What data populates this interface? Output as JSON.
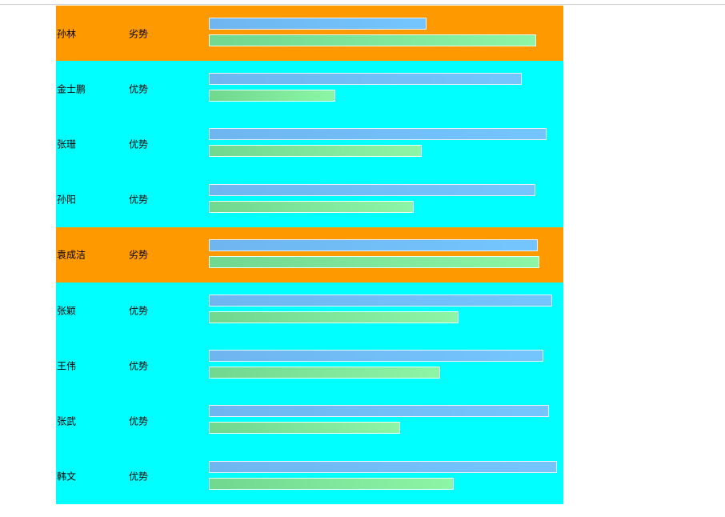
{
  "colors": {
    "advantage_row": "#00ffff",
    "disadvantage_row": "#ff9900",
    "page_background": "#ffffff"
  },
  "rows": [
    {
      "name": "孙林",
      "status": "劣势",
      "bar_1_fraction": 0.623,
      "bar_2_fraction": 0.936
    },
    {
      "name": "金士鹏",
      "status": "优势",
      "bar_1_fraction": 0.894,
      "bar_2_fraction": 0.362
    },
    {
      "name": "张珊",
      "status": "优势",
      "bar_1_fraction": 0.966,
      "bar_2_fraction": 0.608
    },
    {
      "name": "孙阳",
      "status": "优势",
      "bar_1_fraction": 0.934,
      "bar_2_fraction": 0.585
    },
    {
      "name": "袁成洁",
      "status": "劣势",
      "bar_1_fraction": 0.94,
      "bar_2_fraction": 0.944
    },
    {
      "name": "张颖",
      "status": "优势",
      "bar_1_fraction": 0.982,
      "bar_2_fraction": 0.713
    },
    {
      "name": "王伟",
      "status": "优势",
      "bar_1_fraction": 0.956,
      "bar_2_fraction": 0.662
    },
    {
      "name": "张武",
      "status": "优势",
      "bar_1_fraction": 0.972,
      "bar_2_fraction": 0.547
    },
    {
      "name": "韩文",
      "status": "优势",
      "bar_1_fraction": 0.995,
      "bar_2_fraction": 0.701
    }
  ]
}
